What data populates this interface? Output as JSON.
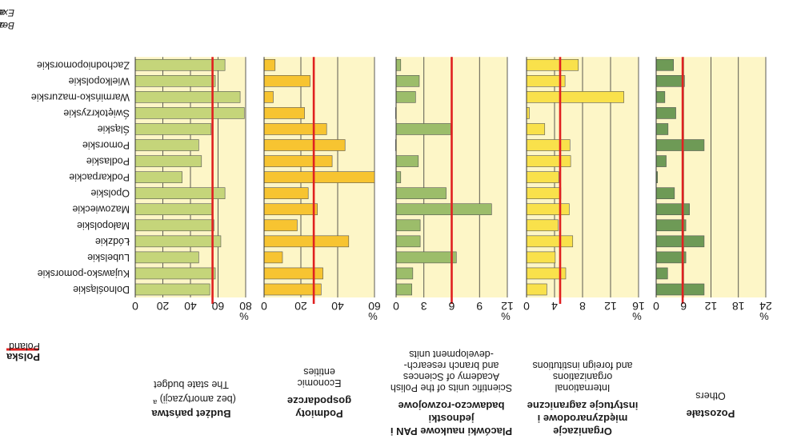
{
  "chart_data": {
    "type": "bar",
    "orientation": "horizontal",
    "categories": [
      "Dolnośląskie",
      "Kujawsko-pomorskie",
      "Lubelskie",
      "Łódzkie",
      "Małopolskie",
      "Mazowieckie",
      "Opolskie",
      "Podkarpackie",
      "Podlaskie",
      "Pomorskie",
      "Śląskie",
      "Świętokrzyskie",
      "Warmińsko-mazurskie",
      "Wielkopolskie",
      "Zachodniopomorskie"
    ],
    "panels": [
      {
        "id": "budget",
        "title": "Budżet państwa",
        "subtitle": "(bez amortyzacji)",
        "subtitle_marker": "a",
        "english": [
          "The state budget"
        ],
        "xlim": [
          0,
          80
        ],
        "ticks": [
          0,
          20,
          40,
          60,
          80
        ],
        "poland": 56,
        "color": "#c5d57a",
        "values": [
          54,
          58,
          46,
          62,
          57,
          56,
          65,
          34,
          48,
          46,
          55,
          79,
          76,
          58,
          65
        ]
      },
      {
        "id": "economic",
        "title": "Podmioty gospodarcze",
        "english": [
          "Economic",
          "entities"
        ],
        "xlim": [
          0,
          60
        ],
        "ticks": [
          0,
          20,
          40,
          60
        ],
        "poland": 27,
        "color": "#f7c431",
        "values": [
          31,
          32,
          10,
          46,
          18,
          29,
          24,
          60,
          37,
          44,
          34,
          22,
          5,
          25,
          6
        ]
      },
      {
        "id": "pan",
        "title": "Placówki naukowe PAN i jednostki badawczo-rozwojowe",
        "english": [
          "Scientific units of the Polish",
          "Academy of Sciences",
          "and branch research-",
          "-development units"
        ],
        "xlim": [
          0,
          12
        ],
        "ticks": [
          0,
          3,
          6,
          9,
          12
        ],
        "poland": 6,
        "color": "#9cbd6a",
        "values": [
          1.7,
          1.8,
          6.5,
          2.6,
          2.6,
          10.3,
          5.4,
          0.5,
          2.4,
          0,
          5.9,
          0,
          2.1,
          2.5,
          0.5
        ]
      },
      {
        "id": "international",
        "title": "Organizacje międzynarodowe i instytucje zagraniczne",
        "english": [
          "International",
          "organizations",
          "and foreign institutions"
        ],
        "xlim": [
          0,
          16
        ],
        "ticks": [
          0,
          4,
          8,
          12,
          16
        ],
        "poland": 4.8,
        "color": "#f9e14b",
        "values": [
          2.9,
          5.6,
          4.1,
          6.6,
          4.5,
          6.1,
          4.9,
          4.6,
          6.3,
          6.2,
          2.6,
          0.4,
          13.9,
          5.5,
          7.4
        ]
      },
      {
        "id": "others",
        "title": "Pozostałe",
        "english": [
          "Others"
        ],
        "xlim": [
          0,
          24
        ],
        "ticks": [
          0,
          6,
          12,
          18,
          24
        ],
        "poland": 5.8,
        "color": "#6e9a56",
        "values": [
          10.5,
          2.5,
          6.5,
          10.5,
          6.5,
          7.3,
          4,
          0.3,
          2.2,
          10.5,
          2.6,
          4.3,
          1.9,
          6.2,
          3.8
        ]
      }
    ],
    "unit": "%",
    "legend": {
      "label_pl": "Polska",
      "label_en": "Poland",
      "color": "#e02020"
    },
    "footnote": {
      "marker": "a",
      "pl": "Bez amortyzacji środków trwałych.",
      "en": "Excluding depreciation of fixed assets."
    }
  }
}
